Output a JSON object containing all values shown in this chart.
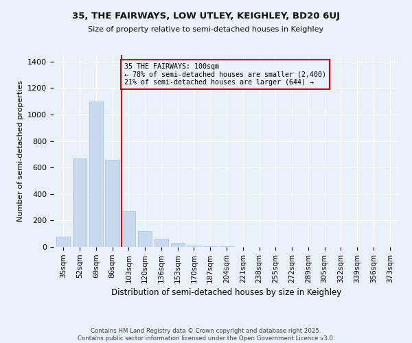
{
  "title1": "35, THE FAIRWAYS, LOW UTLEY, KEIGHLEY, BD20 6UJ",
  "title2": "Size of property relative to semi-detached houses in Keighley",
  "xlabel": "Distribution of semi-detached houses by size in Keighley",
  "ylabel": "Number of semi-detached properties",
  "categories": [
    "35sqm",
    "52sqm",
    "69sqm",
    "86sqm",
    "103sqm",
    "120sqm",
    "136sqm",
    "153sqm",
    "170sqm",
    "187sqm",
    "204sqm",
    "221sqm",
    "238sqm",
    "255sqm",
    "272sqm",
    "289sqm",
    "305sqm",
    "322sqm",
    "339sqm",
    "356sqm",
    "373sqm"
  ],
  "values": [
    80,
    670,
    1100,
    660,
    270,
    120,
    60,
    30,
    10,
    5,
    3,
    2,
    1,
    1,
    0,
    0,
    0,
    0,
    0,
    0,
    0
  ],
  "bar_color": "#c8d9ee",
  "bar_edge_color": "#aabdd8",
  "annotation_line1": "35 THE FAIRWAYS: 100sqm",
  "annotation_line2": "← 78% of semi-detached houses are smaller (2,400)",
  "annotation_line3": "21% of semi-detached houses are larger (644) →",
  "annotation_box_color": "#cc0000",
  "ylim": [
    0,
    1450
  ],
  "bg_color": "#e8f0f8",
  "footer": "Contains HM Land Registry data © Crown copyright and database right 2025.\nContains public sector information licensed under the Open Government Licence v3.0."
}
